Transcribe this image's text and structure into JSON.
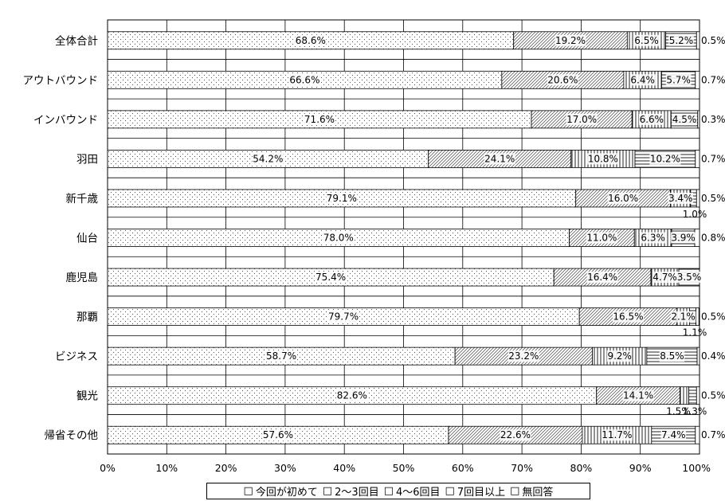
{
  "chart_data": {
    "type": "bar",
    "orientation": "horizontal",
    "stacked": "percent",
    "categories": [
      "全体合計",
      "アウトバウンド",
      "インバウンド",
      "羽田",
      "新千歳",
      "仙台",
      "鹿児島",
      "那覇",
      "ビジネス",
      "観光",
      "帰省その他"
    ],
    "series": [
      {
        "name": "今回が初めて",
        "values": [
          68.6,
          66.6,
          71.6,
          54.2,
          79.1,
          78.0,
          75.4,
          79.7,
          58.7,
          82.6,
          57.6
        ],
        "pattern": "dots"
      },
      {
        "name": "2～3回目",
        "values": [
          19.2,
          20.6,
          17.0,
          24.1,
          16.0,
          11.0,
          16.4,
          16.5,
          23.2,
          14.1,
          22.6
        ],
        "pattern": "diagonal"
      },
      {
        "name": "4～6回目",
        "values": [
          6.5,
          6.4,
          6.6,
          10.8,
          3.4,
          6.3,
          4.7,
          2.1,
          9.2,
          1.5,
          11.7
        ],
        "pattern": "vertical"
      },
      {
        "name": "7回目以上",
        "values": [
          5.2,
          5.7,
          4.5,
          10.2,
          1.0,
          3.9,
          3.5,
          1.1,
          8.5,
          1.3,
          7.4
        ],
        "pattern": "horizontal"
      },
      {
        "name": "無回答",
        "values": [
          0.5,
          0.7,
          0.3,
          0.7,
          0.5,
          0.8,
          0,
          0.5,
          0.4,
          0.5,
          0.7
        ],
        "pattern": "solid"
      }
    ],
    "segment_labels": [
      [
        "68.6%",
        "19.2%",
        "6.5%",
        "5.2%",
        "0.5%"
      ],
      [
        "66.6%",
        "20.6%",
        "6.4%",
        "5.7%",
        "0.7%"
      ],
      [
        "71.6%",
        "17.0%",
        "6.6%",
        "4.5%",
        "0.3%"
      ],
      [
        "54.2%",
        "24.1%",
        "10.8%",
        "10.2%",
        "0.7%"
      ],
      [
        "79.1%",
        "16.0%",
        "3.4%",
        "1.0%",
        "0.5%"
      ],
      [
        "78.0%",
        "11.0%",
        "6.3%",
        "3.9%",
        "0.8%"
      ],
      [
        "75.4%",
        "16.4%",
        "4.7%",
        "3.5%",
        ""
      ],
      [
        "79.7%",
        "16.5%",
        "2.1%",
        "1.1%",
        "0.5%"
      ],
      [
        "58.7%",
        "23.2%",
        "9.2%",
        "8.5%",
        "0.4%"
      ],
      [
        "82.6%",
        "14.1%",
        "1.5%",
        "1.3%",
        "0.5%"
      ],
      [
        "57.6%",
        "22.6%",
        "11.7%",
        "7.4%",
        "0.7%"
      ]
    ],
    "x_ticks": [
      "0%",
      "10%",
      "20%",
      "30%",
      "40%",
      "50%",
      "60%",
      "70%",
      "80%",
      "90%",
      "100%"
    ],
    "xlim": [
      0,
      100
    ],
    "grid": true,
    "legend_position": "bottom",
    "title": "",
    "xlabel": "",
    "ylabel": ""
  },
  "legend": {
    "items": [
      {
        "glyph": "□",
        "label": "今回が初めて"
      },
      {
        "glyph": "□",
        "label": "2～3回目"
      },
      {
        "glyph": "□",
        "label": "4～6回目"
      },
      {
        "glyph": "□",
        "label": "7回目以上"
      },
      {
        "glyph": "□",
        "label": "無回答"
      }
    ]
  }
}
